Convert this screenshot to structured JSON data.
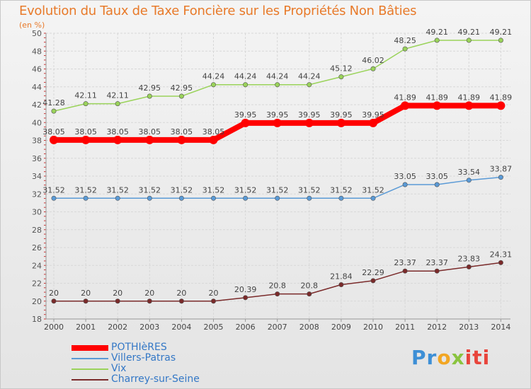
{
  "title": "Evolution du Taux de Taxe Foncière sur les Propriétés Non Bâties",
  "unit": "(en %)",
  "logo": {
    "part1": "Pr",
    "part2": "o",
    "part3": "x",
    "part4": "iti"
  },
  "chart_data": {
    "type": "line",
    "title": "Evolution du Taux de Taxe Foncière sur les Propriétés Non Bâties",
    "ylabel": "(en %)",
    "xlabel": "",
    "ylim": [
      18,
      50
    ],
    "yticks": [
      18,
      20,
      22,
      24,
      26,
      28,
      30,
      32,
      34,
      36,
      38,
      40,
      42,
      44,
      46,
      48,
      50
    ],
    "grid": true,
    "legend_position": "bottom-left",
    "x": [
      "2000",
      "2001",
      "2002",
      "2003",
      "2004",
      "2005",
      "2006",
      "2007",
      "2008",
      "2009",
      "2010",
      "2011",
      "2012",
      "2013",
      "2014"
    ],
    "series": [
      {
        "name": "POTHIèRES",
        "color": "#ff0000",
        "highlight": true,
        "values": [
          38.05,
          38.05,
          38.05,
          38.05,
          38.05,
          38.05,
          39.95,
          39.95,
          39.95,
          39.95,
          39.95,
          41.89,
          41.89,
          41.89,
          41.89
        ],
        "labels": [
          "38.05",
          "38.05",
          "38.05",
          "38.05",
          "38.05",
          "38.05",
          "39.95",
          "39.95",
          "39.95",
          "39.95",
          "39.95",
          "41.89",
          "41.89",
          "41.89",
          "41.89"
        ]
      },
      {
        "name": "Villers-Patras",
        "color": "#5a9ad6",
        "values": [
          31.52,
          31.52,
          31.52,
          31.52,
          31.52,
          31.52,
          31.52,
          31.52,
          31.52,
          31.52,
          31.52,
          33.05,
          33.05,
          33.54,
          33.87
        ],
        "labels": [
          "31.52",
          "31.52",
          "31.52",
          "31.52",
          "31.52",
          "31.52",
          "31.52",
          "31.52",
          "31.52",
          "31.52",
          "31.52",
          "33.05",
          "33.05",
          "33.54",
          "33.87"
        ]
      },
      {
        "name": "Vix",
        "color": "#9ad35a",
        "values": [
          41.28,
          42.11,
          42.11,
          42.95,
          42.95,
          44.24,
          44.24,
          44.24,
          44.24,
          45.12,
          46.02,
          48.25,
          49.21,
          49.21,
          49.21
        ],
        "labels": [
          "41.28",
          "42.11",
          "42.11",
          "42.95",
          "42.95",
          "44.24",
          "44.24",
          "44.24",
          "44.24",
          "45.12",
          "46.02",
          "48.25",
          "49.21",
          "49.21",
          "49.21"
        ]
      },
      {
        "name": "Charrey-sur-Seine",
        "color": "#7a2a2a",
        "values": [
          20,
          20,
          20,
          20,
          20,
          20,
          20.39,
          20.8,
          20.8,
          21.84,
          22.29,
          23.37,
          23.37,
          23.83,
          24.31
        ],
        "labels": [
          "20",
          "20",
          "20",
          "20",
          "20",
          "20",
          "20.39",
          "20.8",
          "20.8",
          "21.84",
          "22.29",
          "23.37",
          "23.37",
          "23.83",
          "24.31"
        ]
      }
    ]
  }
}
